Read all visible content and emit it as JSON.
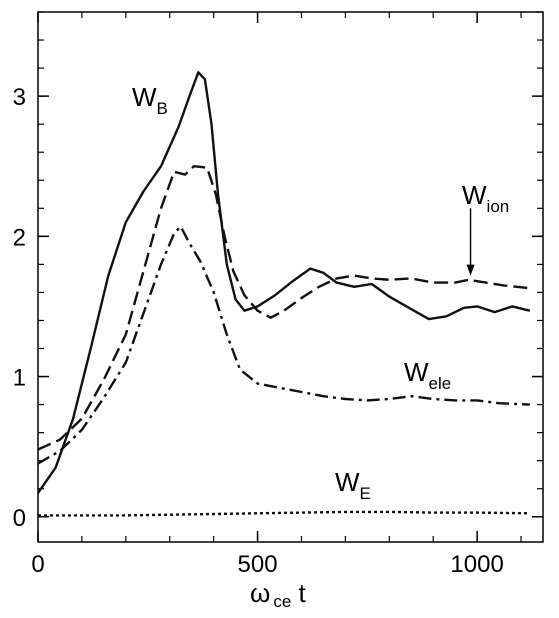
{
  "chart_data": {
    "type": "line",
    "xlabel": {
      "main": "ω",
      "sub": "ce",
      "tail": " t"
    },
    "xlim": [
      0,
      1150
    ],
    "ylim": [
      -0.18,
      3.6
    ],
    "xticks": [
      0,
      500,
      1000
    ],
    "yticks": [
      0,
      1,
      2,
      3
    ],
    "x_minor_step": 100,
    "y_minor_step": 0.2,
    "series": [
      {
        "key": "WB",
        "label": {
          "main": "W",
          "sub": "B"
        },
        "style": "solid",
        "points": [
          [
            0,
            0.17
          ],
          [
            40,
            0.35
          ],
          [
            80,
            0.7
          ],
          [
            120,
            1.2
          ],
          [
            160,
            1.72
          ],
          [
            200,
            2.1
          ],
          [
            240,
            2.32
          ],
          [
            280,
            2.5
          ],
          [
            320,
            2.78
          ],
          [
            345,
            3.0
          ],
          [
            365,
            3.17
          ],
          [
            380,
            3.12
          ],
          [
            395,
            2.8
          ],
          [
            410,
            2.3
          ],
          [
            430,
            1.8
          ],
          [
            450,
            1.55
          ],
          [
            470,
            1.47
          ],
          [
            500,
            1.5
          ],
          [
            540,
            1.58
          ],
          [
            580,
            1.68
          ],
          [
            620,
            1.77
          ],
          [
            650,
            1.74
          ],
          [
            680,
            1.67
          ],
          [
            720,
            1.64
          ],
          [
            760,
            1.66
          ],
          [
            800,
            1.57
          ],
          [
            850,
            1.48
          ],
          [
            890,
            1.41
          ],
          [
            930,
            1.43
          ],
          [
            970,
            1.49
          ],
          [
            1000,
            1.5
          ],
          [
            1040,
            1.46
          ],
          [
            1080,
            1.5
          ],
          [
            1120,
            1.47
          ]
        ]
      },
      {
        "key": "Wion",
        "label": {
          "main": "W",
          "sub": "ion"
        },
        "style": "dash",
        "points": [
          [
            0,
            0.48
          ],
          [
            50,
            0.55
          ],
          [
            100,
            0.7
          ],
          [
            150,
            0.98
          ],
          [
            200,
            1.3
          ],
          [
            240,
            1.75
          ],
          [
            280,
            2.2
          ],
          [
            310,
            2.46
          ],
          [
            335,
            2.44
          ],
          [
            355,
            2.5
          ],
          [
            385,
            2.49
          ],
          [
            405,
            2.3
          ],
          [
            425,
            2.0
          ],
          [
            445,
            1.75
          ],
          [
            470,
            1.58
          ],
          [
            500,
            1.47
          ],
          [
            530,
            1.42
          ],
          [
            560,
            1.47
          ],
          [
            600,
            1.56
          ],
          [
            640,
            1.64
          ],
          [
            680,
            1.7
          ],
          [
            720,
            1.72
          ],
          [
            760,
            1.7
          ],
          [
            800,
            1.69
          ],
          [
            850,
            1.7
          ],
          [
            900,
            1.67
          ],
          [
            950,
            1.67
          ],
          [
            980,
            1.69
          ],
          [
            1020,
            1.67
          ],
          [
            1060,
            1.65
          ],
          [
            1120,
            1.63
          ]
        ]
      },
      {
        "key": "Wele",
        "label": {
          "main": "W",
          "sub": "ele"
        },
        "style": "dashdot",
        "points": [
          [
            0,
            0.38
          ],
          [
            50,
            0.47
          ],
          [
            100,
            0.62
          ],
          [
            150,
            0.85
          ],
          [
            200,
            1.1
          ],
          [
            240,
            1.45
          ],
          [
            280,
            1.8
          ],
          [
            310,
            2.02
          ],
          [
            325,
            2.07
          ],
          [
            345,
            1.95
          ],
          [
            370,
            1.82
          ],
          [
            400,
            1.6
          ],
          [
            430,
            1.3
          ],
          [
            460,
            1.05
          ],
          [
            500,
            0.95
          ],
          [
            550,
            0.92
          ],
          [
            600,
            0.89
          ],
          [
            650,
            0.86
          ],
          [
            700,
            0.84
          ],
          [
            750,
            0.83
          ],
          [
            800,
            0.84
          ],
          [
            850,
            0.86
          ],
          [
            900,
            0.84
          ],
          [
            950,
            0.83
          ],
          [
            1000,
            0.83
          ],
          [
            1050,
            0.81
          ],
          [
            1120,
            0.8
          ]
        ]
      },
      {
        "key": "WE",
        "label": {
          "main": "W",
          "sub": "E"
        },
        "style": "dot",
        "points": [
          [
            0,
            0.01
          ],
          [
            100,
            0.01
          ],
          [
            200,
            0.01
          ],
          [
            300,
            0.015
          ],
          [
            400,
            0.02
          ],
          [
            500,
            0.025
          ],
          [
            600,
            0.03
          ],
          [
            700,
            0.035
          ],
          [
            800,
            0.035
          ],
          [
            900,
            0.03
          ],
          [
            1000,
            0.03
          ],
          [
            1120,
            0.025
          ]
        ]
      }
    ]
  },
  "annotations": {
    "ion_arrow_x": 985,
    "ion_arrow_from_y": 2.2,
    "ion_arrow_to_y": 1.72
  }
}
